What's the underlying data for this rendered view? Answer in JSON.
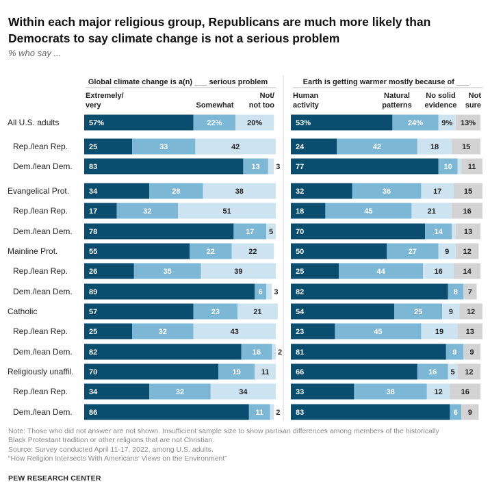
{
  "title": "Within each major religious group, Republicans are much more likely than Democrats to say climate change is not a serious problem",
  "subtitle": "% who say ...",
  "colors": {
    "dark": "#0b4d6e",
    "mid": "#7db7d6",
    "light": "#cde3f0",
    "gray": "#d3d3d3"
  },
  "chart_data": [
    {
      "type": "bar",
      "stacked": true,
      "orientation": "horizontal",
      "title": "Global climate change is a(n) ___ serious problem",
      "series": [
        {
          "name": "Extremely/ very",
          "values": [
            57,
            25,
            83,
            34,
            17,
            78,
            55,
            26,
            89,
            57,
            25,
            82,
            70,
            34,
            86
          ]
        },
        {
          "name": "Somewhat",
          "values": [
            22,
            33,
            13,
            28,
            32,
            17,
            22,
            35,
            6,
            23,
            32,
            16,
            19,
            32,
            11
          ]
        },
        {
          "name": "Not/ not too",
          "values": [
            20,
            42,
            3,
            38,
            51,
            5,
            22,
            39,
            3,
            21,
            43,
            2,
            11,
            34,
            2
          ]
        }
      ],
      "categories": [
        "All U.S. adults",
        "Rep./lean Rep.",
        "Dem./lean Dem.",
        "Evangelical Prot.",
        "Rep./lean Rep.",
        "Dem./lean Dem.",
        "Mainline Prot.",
        "Rep./lean Rep.",
        "Dem./lean Dem.",
        "Catholic",
        "Rep./lean Rep.",
        "Dem./lean Dem.",
        "Religiously unaffil.",
        "Rep./lean Rep.",
        "Dem./lean Dem."
      ]
    },
    {
      "type": "bar",
      "stacked": true,
      "orientation": "horizontal",
      "title": "Earth is getting warmer mostly because of ___",
      "series": [
        {
          "name": "Human activity",
          "values": [
            53,
            24,
            77,
            32,
            18,
            70,
            50,
            25,
            82,
            54,
            23,
            81,
            66,
            33,
            83
          ]
        },
        {
          "name": "Natural patterns",
          "values": [
            24,
            42,
            10,
            36,
            45,
            14,
            27,
            44,
            8,
            25,
            45,
            9,
            16,
            38,
            6
          ]
        },
        {
          "name": "No solid evidence",
          "values": [
            9,
            18,
            2,
            17,
            21,
            2,
            9,
            16,
            null,
            9,
            19,
            null,
            5,
            12,
            null
          ]
        },
        {
          "name": "Not sure",
          "values": [
            13,
            15,
            11,
            15,
            16,
            13,
            12,
            14,
            7,
            12,
            13,
            9,
            12,
            16,
            9
          ]
        }
      ],
      "categories": [
        "All U.S. adults",
        "Rep./lean Rep.",
        "Dem./lean Dem.",
        "Evangelical Prot.",
        "Rep./lean Rep.",
        "Dem./lean Dem.",
        "Mainline Prot.",
        "Rep./lean Rep.",
        "Dem./lean Dem.",
        "Catholic",
        "Rep./lean Rep.",
        "Dem./lean Dem.",
        "Religiously unaffil.",
        "Rep./lean Rep.",
        "Dem./lean Dem."
      ]
    }
  ],
  "rows": [
    {
      "label": "All U.S. adults",
      "sub": false,
      "pct": true
    },
    {
      "label": "Rep./lean Rep.",
      "sub": true
    },
    {
      "label": "Dem./lean Dem.",
      "sub": true
    },
    {
      "label": "Evangelical Prot.",
      "sub": false
    },
    {
      "label": "Rep./lean Rep.",
      "sub": true
    },
    {
      "label": "Dem./lean Dem.",
      "sub": true
    },
    {
      "label": "Mainline Prot.",
      "sub": false
    },
    {
      "label": "Rep./lean Rep.",
      "sub": true
    },
    {
      "label": "Dem./lean Dem.",
      "sub": true
    },
    {
      "label": "Catholic",
      "sub": false
    },
    {
      "label": "Rep./lean Rep.",
      "sub": true
    },
    {
      "label": "Dem./lean Dem.",
      "sub": true
    },
    {
      "label": "Religiously unaffil.",
      "sub": false
    },
    {
      "label": "Rep./lean Rep.",
      "sub": true
    },
    {
      "label": "Dem./lean Dem.",
      "sub": true
    }
  ],
  "col_headers_left": [
    [
      "Extremely/",
      "very"
    ],
    [
      "Somewhat"
    ],
    [
      "Not/",
      "not too"
    ]
  ],
  "col_headers_right": [
    [
      "Human",
      "activity"
    ],
    [
      "Natural",
      "patterns"
    ],
    [
      "No solid",
      "evidence"
    ],
    [
      "Not",
      "sure"
    ]
  ],
  "notes": [
    "Note: Those who did not answer are not shown. Insufficient sample size to show partisan differences among members of the historically",
    "Black Protestant tradition or other religions that are not Christian.",
    "Source: Survey conducted April 11-17, 2022, among U.S. adults.",
    "“How Religion Intersects With Americans’ Views on the Environment”"
  ],
  "brand": "PEW RESEARCH CENTER"
}
